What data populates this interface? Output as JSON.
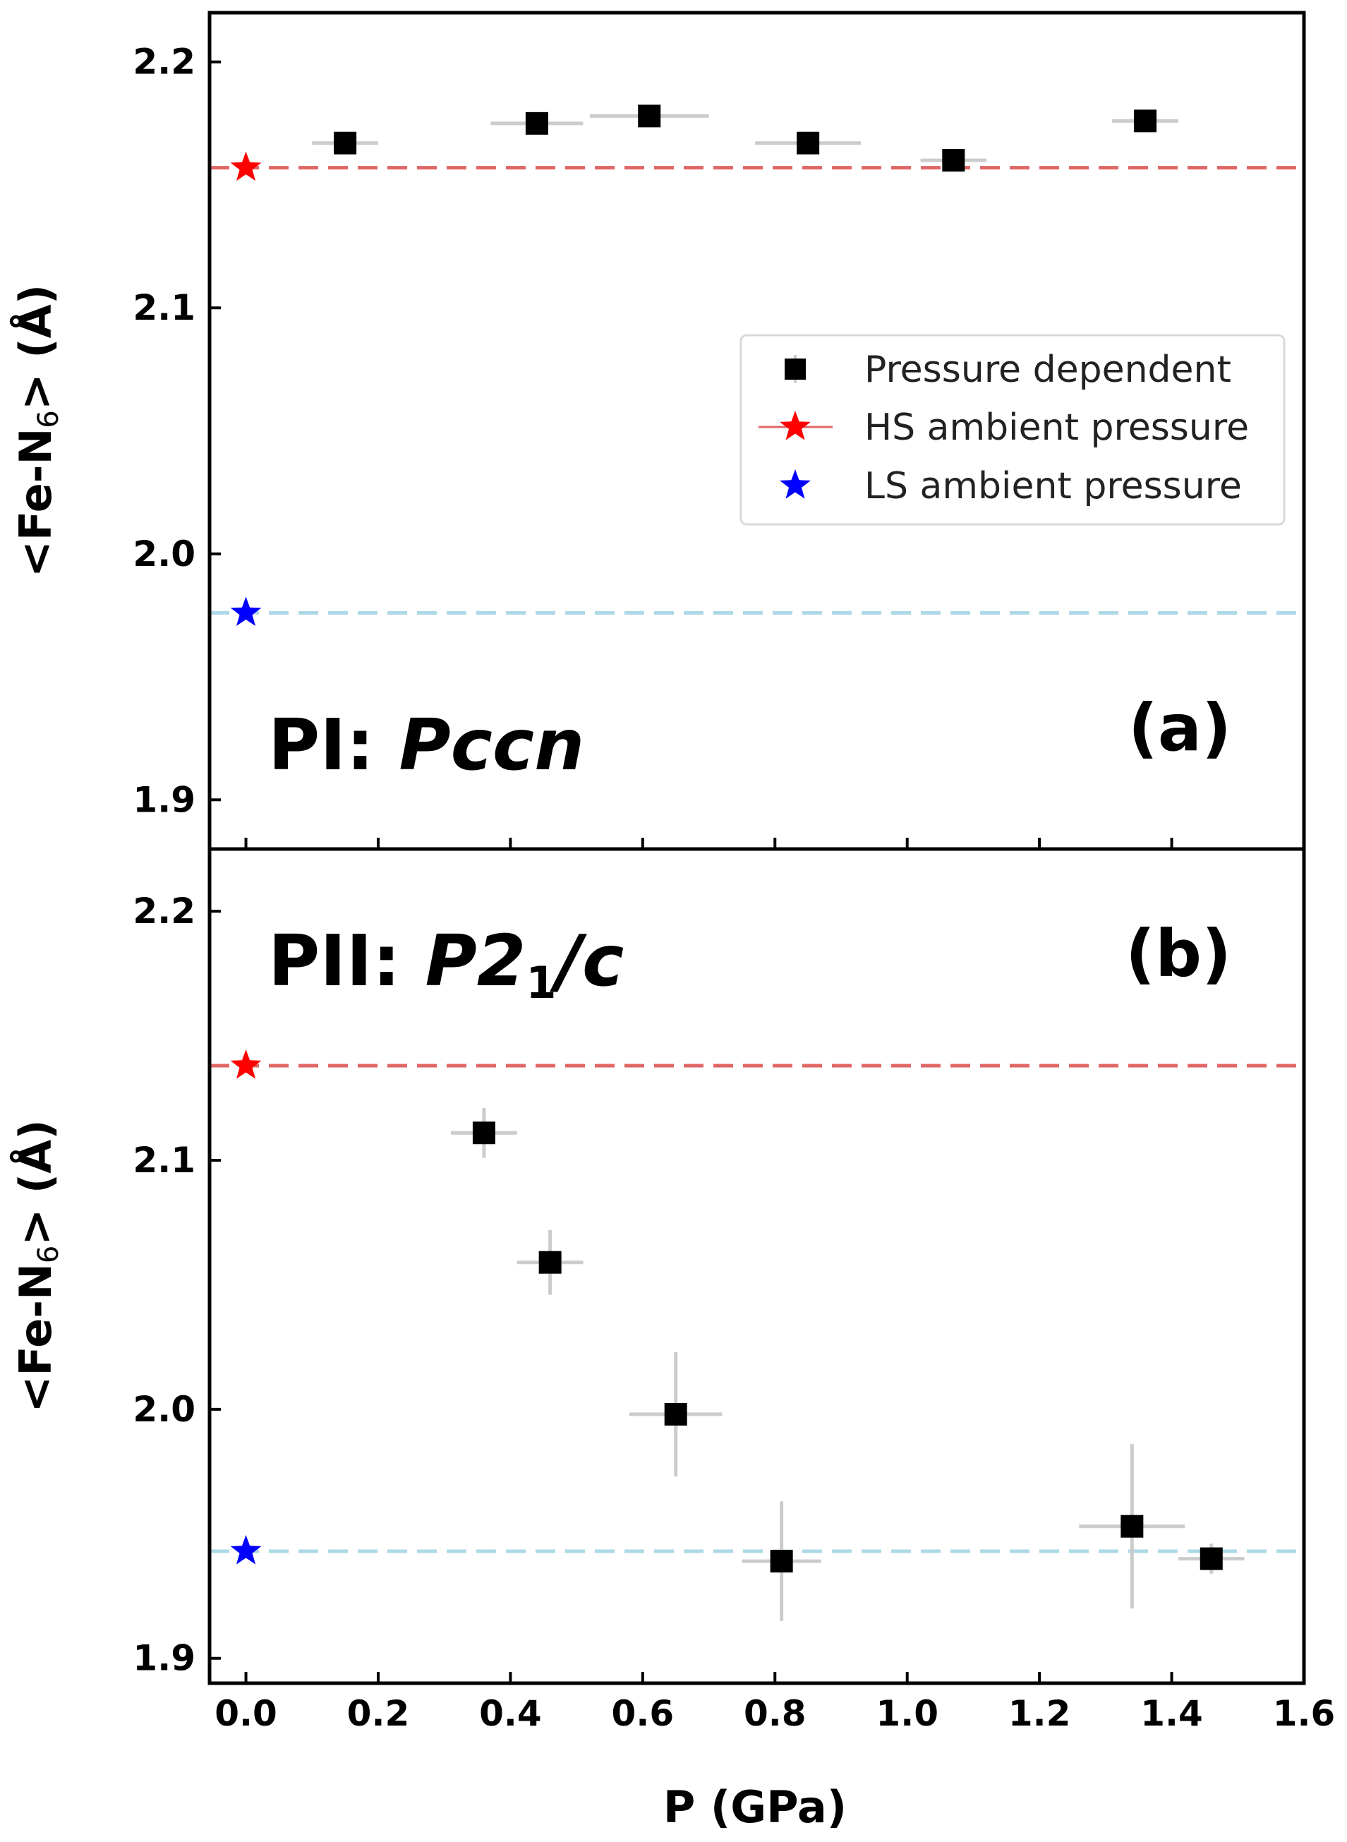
{
  "chart_data": {
    "type": "scatter",
    "xlabel": "P (GPa)",
    "xlim": [
      -0.055,
      1.6
    ],
    "x_ticks": [
      "0.0",
      "0.2",
      "0.4",
      "0.6",
      "0.8",
      "1.0",
      "1.2",
      "1.4",
      "1.6"
    ],
    "x_tick_values": [
      0.0,
      0.2,
      0.4,
      0.6,
      0.8,
      1.0,
      1.2,
      1.4,
      1.6
    ],
    "legend": {
      "placement": "center-right of top panel",
      "entries": [
        {
          "label": "Pressure dependent",
          "marker": "square",
          "color": "#000000"
        },
        {
          "label": "HS ambient pressure",
          "marker": "star",
          "color": "#ff0000"
        },
        {
          "label": "LS ambient pressure",
          "marker": "star",
          "color": "#0000ff"
        }
      ]
    },
    "panels": [
      {
        "id": "a",
        "panel_label": "(a)",
        "phase_prefix": "PI: ",
        "phase_group": "Pccn",
        "phase_group_parts": [
          "Pccn",
          "",
          ""
        ],
        "ylabel_pre": "<Fe-N",
        "ylabel_sub": "6",
        "ylabel_post": "> (Å)",
        "ylim": [
          1.88,
          2.22
        ],
        "y_ticks": [
          "1.9",
          "2.0",
          "2.1",
          "2.2"
        ],
        "y_tick_values": [
          1.9,
          2.0,
          2.1,
          2.2
        ],
        "hs_reference": {
          "x": 0.0,
          "y": 2.157,
          "color": "#e06666"
        },
        "ls_reference": {
          "x": 0.0,
          "y": 1.976,
          "color": "#add8e6"
        },
        "series": [
          {
            "name": "Pressure dependent",
            "points": [
              {
                "x": 0.15,
                "y": 2.167,
                "xerr": 0.05,
                "yerr": 0.003
              },
              {
                "x": 0.44,
                "y": 2.175,
                "xerr": 0.07,
                "yerr": 0.004
              },
              {
                "x": 0.61,
                "y": 2.178,
                "xerr": 0.09,
                "yerr": 0.003
              },
              {
                "x": 0.85,
                "y": 2.167,
                "xerr": 0.08,
                "yerr": 0.003
              },
              {
                "x": 1.07,
                "y": 2.16,
                "xerr": 0.05,
                "yerr": 0.003
              },
              {
                "x": 1.36,
                "y": 2.176,
                "xerr": 0.05,
                "yerr": 0.004
              }
            ]
          }
        ]
      },
      {
        "id": "b",
        "panel_label": "(b)",
        "phase_prefix": "PII: ",
        "phase_group": "P21/c",
        "phase_group_parts": [
          "P2",
          "1",
          "/c"
        ],
        "ylabel_pre": "<Fe-N",
        "ylabel_sub": "6",
        "ylabel_post": "> (Å)",
        "ylim": [
          1.89,
          2.225
        ],
        "y_ticks": [
          "1.9",
          "2.0",
          "2.1",
          "2.2"
        ],
        "y_tick_values": [
          1.9,
          2.0,
          2.1,
          2.2
        ],
        "hs_reference": {
          "x": 0.0,
          "y": 2.138,
          "color": "#e06666"
        },
        "ls_reference": {
          "x": 0.0,
          "y": 1.943,
          "color": "#add8e6"
        },
        "series": [
          {
            "name": "Pressure dependent",
            "points": [
              {
                "x": 0.36,
                "y": 2.111,
                "xerr": 0.05,
                "yerr": 0.01
              },
              {
                "x": 0.46,
                "y": 2.059,
                "xerr": 0.05,
                "yerr": 0.013
              },
              {
                "x": 0.65,
                "y": 1.998,
                "xerr": 0.07,
                "yerr": 0.025
              },
              {
                "x": 0.81,
                "y": 1.939,
                "xerr": 0.06,
                "yerr": 0.024
              },
              {
                "x": 1.34,
                "y": 1.953,
                "xerr": 0.08,
                "yerr": 0.033
              },
              {
                "x": 1.46,
                "y": 1.94,
                "xerr": 0.05,
                "yerr": 0.006
              }
            ]
          }
        ]
      }
    ]
  }
}
